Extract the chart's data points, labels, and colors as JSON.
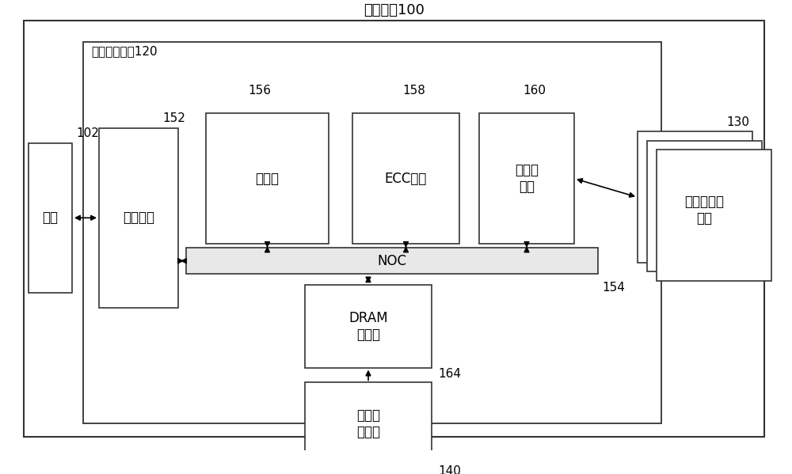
{
  "bg_color": "#ffffff",
  "box_color": "#ffffff",
  "box_edge": "#333333",
  "title_outer": "存储系统100",
  "title_controller": "存储器控制器120",
  "label_host": "主机",
  "label_host_num": "102",
  "label_host_if": "主机接口",
  "label_host_if_num": "152",
  "label_processor": "处理器",
  "label_processor_num": "156",
  "label_ecc": "ECC引擎",
  "label_ecc_num": "158",
  "label_mem_if": "存储器\n接口",
  "label_mem_if_num": "160",
  "label_noc": "NOC",
  "label_noc_num": "154",
  "label_dram": "DRAM\n控制器",
  "label_dram_num": "164",
  "label_volatile": "易失性\n存储器",
  "label_volatile_num": "140",
  "label_mem_die": "存储器管芯\n组件",
  "label_mem_die_num": "130",
  "font_size_title": 13,
  "font_size_label": 12,
  "font_size_num": 11
}
